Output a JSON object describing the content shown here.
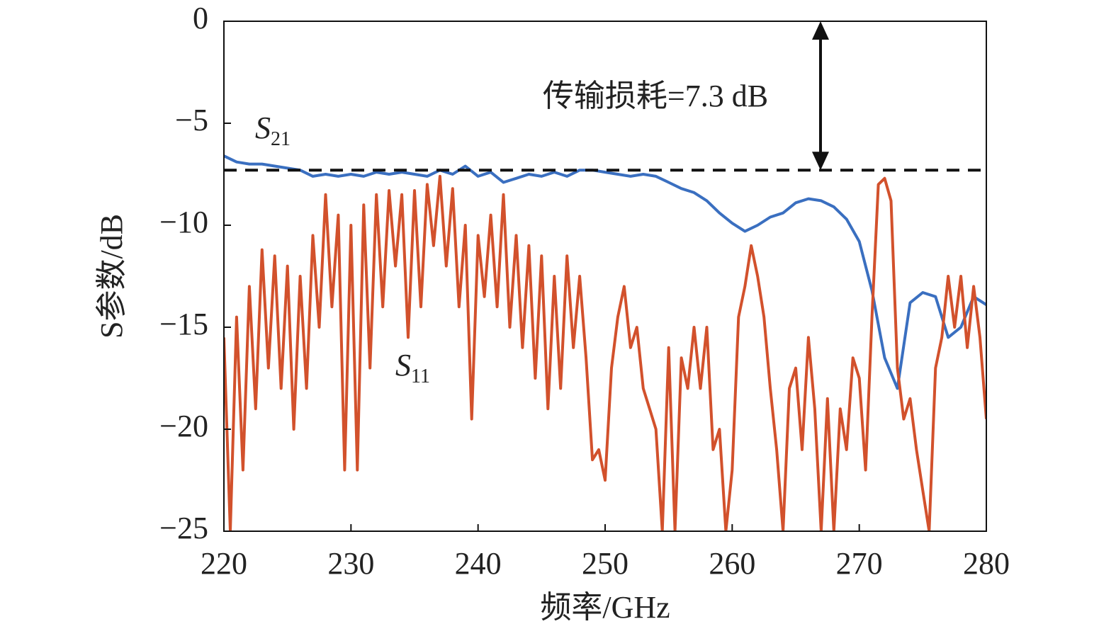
{
  "chart_data": {
    "type": "line",
    "xlabel": "频率/GHz",
    "ylabel": "S参数/dB",
    "annotation": "传输损耗=7.3 dB",
    "reference_line": -7.3,
    "xlim": [
      220,
      280
    ],
    "xticks": [
      220,
      230,
      240,
      250,
      260,
      270,
      280
    ],
    "ylim": [
      -25,
      0
    ],
    "yticks": [
      {
        "value": -25,
        "label": "−25"
      },
      {
        "value": -20,
        "label": "−20"
      },
      {
        "value": -15,
        "label": "−15"
      },
      {
        "value": -10,
        "label": "−10"
      },
      {
        "value": -5,
        "label": "−5"
      },
      0
    ],
    "series": [
      {
        "name": "S21",
        "color": "#3a6fc0",
        "x": [
          220,
          221,
          222,
          223,
          224,
          225,
          226,
          227,
          228,
          229,
          230,
          231,
          232,
          233,
          234,
          235,
          236,
          237,
          238,
          239,
          240,
          241,
          242,
          243,
          244,
          245,
          246,
          247,
          248,
          249,
          250,
          251,
          252,
          253,
          254,
          255,
          256,
          257,
          258,
          259,
          260,
          261,
          262,
          263,
          264,
          265,
          266,
          267,
          268,
          269,
          270,
          271,
          272,
          273,
          274,
          275,
          276,
          277,
          278,
          279,
          280
        ],
        "values": [
          -6.6,
          -6.9,
          -7.0,
          -7.0,
          -7.1,
          -7.2,
          -7.3,
          -7.6,
          -7.5,
          -7.6,
          -7.5,
          -7.6,
          -7.4,
          -7.5,
          -7.4,
          -7.5,
          -7.6,
          -7.3,
          -7.5,
          -7.1,
          -7.6,
          -7.4,
          -7.9,
          -7.7,
          -7.5,
          -7.6,
          -7.4,
          -7.6,
          -7.3,
          -7.3,
          -7.4,
          -7.5,
          -7.6,
          -7.5,
          -7.6,
          -7.9,
          -8.2,
          -8.4,
          -8.8,
          -9.4,
          -9.9,
          -10.3,
          -10.0,
          -9.6,
          -9.4,
          -8.9,
          -8.7,
          -8.8,
          -9.1,
          -9.7,
          -10.8,
          -13.2,
          -16.5,
          -18.0,
          -13.8,
          -13.3,
          -13.5,
          -15.5,
          -15.0,
          -13.5,
          -13.9
        ]
      },
      {
        "name": "S11",
        "color": "#d2512c",
        "x": [
          220,
          220.5,
          221,
          221.5,
          222,
          222.5,
          223,
          223.5,
          224,
          224.5,
          225,
          225.5,
          226,
          226.5,
          227,
          227.5,
          228,
          228.5,
          229,
          229.5,
          230,
          230.5,
          231,
          231.5,
          232,
          232.5,
          233,
          233.5,
          234,
          234.5,
          235,
          235.5,
          236,
          236.5,
          237,
          237.5,
          238,
          238.5,
          239,
          239.5,
          240,
          240.5,
          241,
          241.5,
          242,
          242.5,
          243,
          243.5,
          244,
          244.5,
          245,
          245.5,
          246,
          246.5,
          247,
          247.5,
          248,
          248.5,
          249,
          249.5,
          250,
          250.5,
          251,
          251.5,
          252,
          252.5,
          253,
          253.5,
          254,
          254.5,
          255,
          255.5,
          256,
          256.5,
          257,
          257.5,
          258,
          258.5,
          259,
          259.5,
          260,
          260.5,
          261,
          261.5,
          262,
          262.5,
          263,
          263.5,
          264,
          264.5,
          265,
          265.5,
          266,
          266.5,
          267,
          267.5,
          268,
          268.5,
          269,
          269.5,
          270,
          270.5,
          271,
          271.5,
          272,
          272.5,
          273,
          273.5,
          274,
          274.5,
          275,
          275.5,
          276,
          276.5,
          277,
          277.5,
          278,
          278.5,
          279,
          279.5,
          280
        ],
        "values": [
          -15.5,
          -25,
          -14.5,
          -22,
          -13,
          -19,
          -11.2,
          -17,
          -11.5,
          -18,
          -12,
          -20,
          -12.5,
          -18,
          -10.5,
          -15,
          -8.5,
          -14,
          -9.5,
          -22,
          -10,
          -22,
          -9,
          -17,
          -8.5,
          -14,
          -8.3,
          -12,
          -8.5,
          -15.5,
          -8.3,
          -14,
          -8,
          -11,
          -7.6,
          -12,
          -8.2,
          -14,
          -10,
          -19.5,
          -10.5,
          -13.5,
          -9.5,
          -14,
          -8.5,
          -15,
          -10.5,
          -16,
          -11,
          -17.5,
          -11.5,
          -19,
          -12.5,
          -18,
          -11.5,
          -16,
          -12.5,
          -16.5,
          -21.5,
          -21,
          -22.5,
          -17,
          -14.5,
          -13,
          -16,
          -15,
          -18,
          -19,
          -20,
          -25,
          -16,
          -25,
          -16.5,
          -18,
          -15,
          -18,
          -15,
          -21,
          -20,
          -25,
          -22,
          -14.5,
          -13,
          -11,
          -12.5,
          -14.5,
          -18,
          -21,
          -25,
          -18,
          -17,
          -21,
          -15.5,
          -19,
          -25,
          -18.5,
          -25,
          -19,
          -21,
          -16.5,
          -17.5,
          -22,
          -14.5,
          -8,
          -7.7,
          -8.8,
          -17,
          -19.5,
          -18.5,
          -21,
          -23,
          -25,
          -17,
          -15.5,
          -12.5,
          -15,
          -12.5,
          -16,
          -13,
          -15.5,
          -19.5
        ]
      }
    ]
  }
}
